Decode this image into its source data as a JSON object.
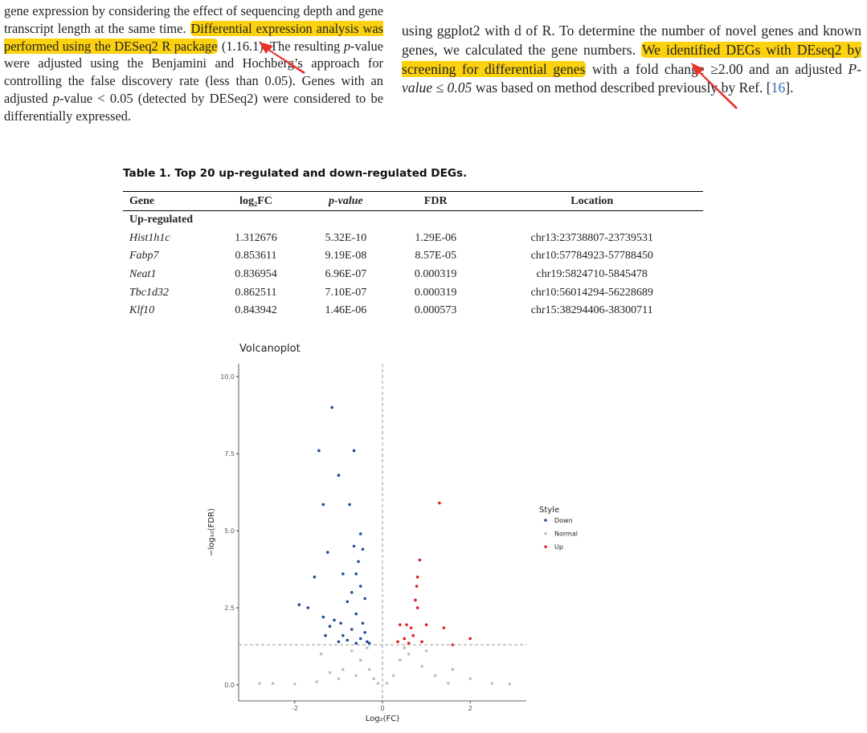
{
  "left_paragraph": [
    "gene expression by considering the effect of sequencing depth and gene transcript length at the same time. ",
    "Differential expression analysis was performed using the DESeq2 R package",
    " (1.16.1). The resulting ",
    "p",
    "-value were adjusted using the Benjamini and Hochberg’s approach for controlling the false discovery rate (less than 0.05). Genes with an adjusted ",
    "p",
    "-value < 0.05 (detected by DESeq2) were considered to be differentially expressed."
  ],
  "right_paragraph": [
    "using ggplot2 with d of R. To determine the number of novel genes and known genes, we calculated the gene numbers. ",
    "We identified DEGs with DEseq2 by screening for differential genes",
    " with a fold change ≥2.00 and an adjusted ",
    "P-value ≤ 0.05",
    " was based on method described previously by Ref. [",
    "16",
    "]."
  ],
  "table": {
    "caption": "Table 1. Top 20 up-regulated and down-regulated DEGs.",
    "columns": [
      "Gene",
      "log₂FC",
      "p-value",
      "FDR",
      "Location"
    ],
    "sections": [
      {
        "label": "Up-regulated",
        "rows": [
          [
            "Hist1h1c",
            "1.312676",
            "5.32E-10",
            "1.29E-06",
            "chr13:23738807-23739531"
          ],
          [
            "Fabp7",
            "0.853611",
            "9.19E-08",
            "8.57E-05",
            "chr10:57784923-57788450"
          ],
          [
            "Neat1",
            "0.836954",
            "6.96E-07",
            "0.000319",
            "chr19:5824710-5845478"
          ],
          [
            "Tbc1d32",
            "0.862511",
            "7.10E-07",
            "0.000319",
            "chr10:56014294-56228689"
          ],
          [
            "Klf10",
            "0.843942",
            "1.46E-06",
            "0.000573",
            "chr15:38294406-38300711"
          ]
        ]
      }
    ]
  },
  "chart_data": {
    "type": "scatter",
    "title": "Volcanoplot",
    "x_label": "Log₂(FC)",
    "y_label": "−log₁₀(FDR)",
    "xlim": [
      -3.28,
      3.28
    ],
    "ylim": [
      -0.52,
      10.42
    ],
    "xticks": [
      -2,
      0,
      2
    ],
    "yticks": [
      {
        "value": 0,
        "label": "0.0"
      },
      {
        "value": 2.5,
        "label": "2.5"
      },
      {
        "value": 5,
        "label": "5.0"
      },
      {
        "value": 7.5,
        "label": "7.5"
      },
      {
        "value": 10,
        "label": "10.0"
      }
    ],
    "reference_lines": {
      "x": 0,
      "y": 1.3
    },
    "legend": {
      "title": "Style",
      "position": "right"
    },
    "series": [
      {
        "name": "Down",
        "color": "#1f4e96",
        "x": [
          -1.15,
          -1.45,
          -0.65,
          -1.0,
          -1.35,
          -0.75,
          -0.5,
          -1.25,
          -0.65,
          -1.55,
          -0.9,
          -0.6,
          -1.9,
          -1.7,
          -1.35,
          -1.1,
          -0.5,
          -0.7,
          -0.8,
          -0.4,
          -0.6,
          -0.95,
          -1.2,
          -0.45,
          -0.7,
          -0.9,
          -0.5,
          -0.35,
          -1.0,
          -0.6,
          -0.8,
          -0.4,
          -0.55,
          -0.45,
          -0.3,
          -1.3
        ],
        "values": [
          9.0,
          7.6,
          7.6,
          6.8,
          5.85,
          5.85,
          4.9,
          4.3,
          4.5,
          3.5,
          3.6,
          3.6,
          2.6,
          2.5,
          2.2,
          2.1,
          3.2,
          3.0,
          2.7,
          2.8,
          2.3,
          2.0,
          1.9,
          2.0,
          1.8,
          1.6,
          1.5,
          1.4,
          1.4,
          1.35,
          1.45,
          1.7,
          4.0,
          4.4,
          1.35,
          1.6
        ]
      },
      {
        "name": "Normal",
        "color": "#bdbdbd",
        "x": [
          -2.8,
          -2.5,
          -2.0,
          -1.5,
          -1.2,
          -1.4,
          -0.9,
          -0.7,
          -0.5,
          -0.3,
          -0.2,
          -0.1,
          0.1,
          0.25,
          0.4,
          0.6,
          0.9,
          1.2,
          1.6,
          2.0,
          2.5,
          2.9,
          0.5,
          -0.6,
          1.0,
          -1.0,
          1.5,
          -0.35
        ],
        "values": [
          0.05,
          0.05,
          0.03,
          0.1,
          0.4,
          1.0,
          0.5,
          1.1,
          0.8,
          0.5,
          0.2,
          0.05,
          0.05,
          0.3,
          0.8,
          1.0,
          0.6,
          0.3,
          0.5,
          0.2,
          0.05,
          0.03,
          1.2,
          0.3,
          1.1,
          0.2,
          0.05,
          1.2
        ]
      },
      {
        "name": "Up",
        "color": "#e41a1c",
        "x": [
          1.3,
          0.85,
          0.8,
          0.78,
          0.75,
          0.8,
          0.55,
          0.4,
          0.65,
          1.0,
          1.4,
          2.0,
          1.6,
          0.7,
          0.5,
          0.9,
          0.35,
          0.6
        ],
        "values": [
          5.9,
          4.05,
          3.5,
          3.2,
          2.75,
          2.5,
          1.95,
          1.95,
          1.85,
          1.95,
          1.85,
          1.5,
          1.3,
          1.6,
          1.5,
          1.4,
          1.4,
          1.35
        ]
      }
    ]
  }
}
